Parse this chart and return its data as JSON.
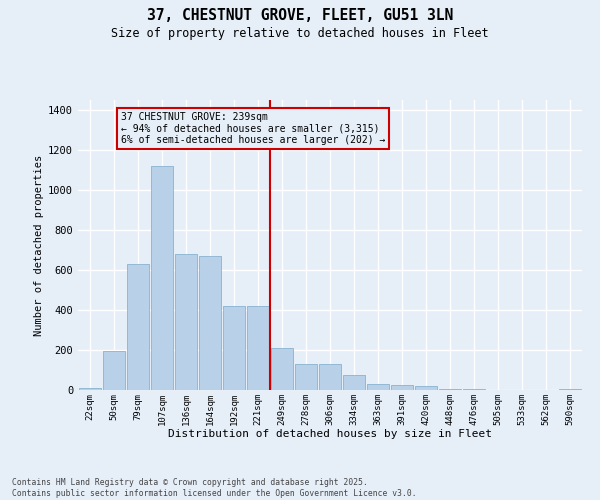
{
  "title": "37, CHESTNUT GROVE, FLEET, GU51 3LN",
  "subtitle": "Size of property relative to detached houses in Fleet",
  "xlabel": "Distribution of detached houses by size in Fleet",
  "ylabel": "Number of detached properties",
  "categories": [
    "22sqm",
    "50sqm",
    "79sqm",
    "107sqm",
    "136sqm",
    "164sqm",
    "192sqm",
    "221sqm",
    "249sqm",
    "278sqm",
    "306sqm",
    "334sqm",
    "363sqm",
    "391sqm",
    "420sqm",
    "448sqm",
    "476sqm",
    "505sqm",
    "533sqm",
    "562sqm",
    "590sqm"
  ],
  "values": [
    10,
    195,
    630,
    1120,
    680,
    670,
    420,
    420,
    210,
    130,
    130,
    75,
    30,
    25,
    20,
    5,
    5,
    0,
    0,
    0,
    5
  ],
  "bar_color": "#b8d0e8",
  "bar_edge_color": "#7aaaca",
  "bg_color": "#e6eef8",
  "grid_color": "#ffffff",
  "vline_color": "#cc0000",
  "vline_x": 7.5,
  "annotation_title": "37 CHESTNUT GROVE: 239sqm",
  "annotation_line1": "← 94% of detached houses are smaller (3,315)",
  "annotation_line2": "6% of semi-detached houses are larger (202) →",
  "annotation_box_edge": "#cc0000",
  "ylim_max": 1450,
  "yticks": [
    0,
    200,
    400,
    600,
    800,
    1000,
    1200,
    1400
  ],
  "footer_line1": "Contains HM Land Registry data © Crown copyright and database right 2025.",
  "footer_line2": "Contains public sector information licensed under the Open Government Licence v3.0."
}
